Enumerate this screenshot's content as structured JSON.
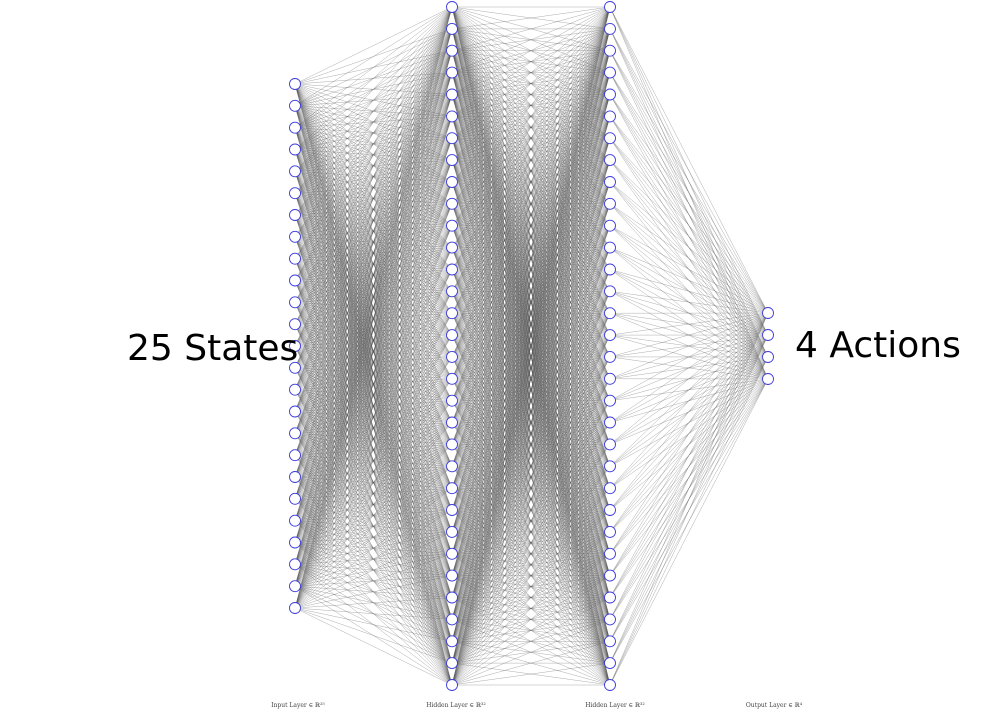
{
  "labels": {
    "input_side": "25 States",
    "output_side": "4 Actions"
  },
  "layers": [
    {
      "name": "Input Layer ∈ ℝ²⁵",
      "neurons": 25
    },
    {
      "name": "Hidden Layer ∈ ℝ³²",
      "neurons": 32
    },
    {
      "name": "Hidden Layer ∈ ℝ³²",
      "neurons": 32
    },
    {
      "name": "Output Layer ∈ ℝ⁴",
      "neurons": 4
    }
  ],
  "colors": {
    "node_stroke": "#3b3bdc",
    "node_fill": "#ffffff",
    "edge": "#555555"
  }
}
